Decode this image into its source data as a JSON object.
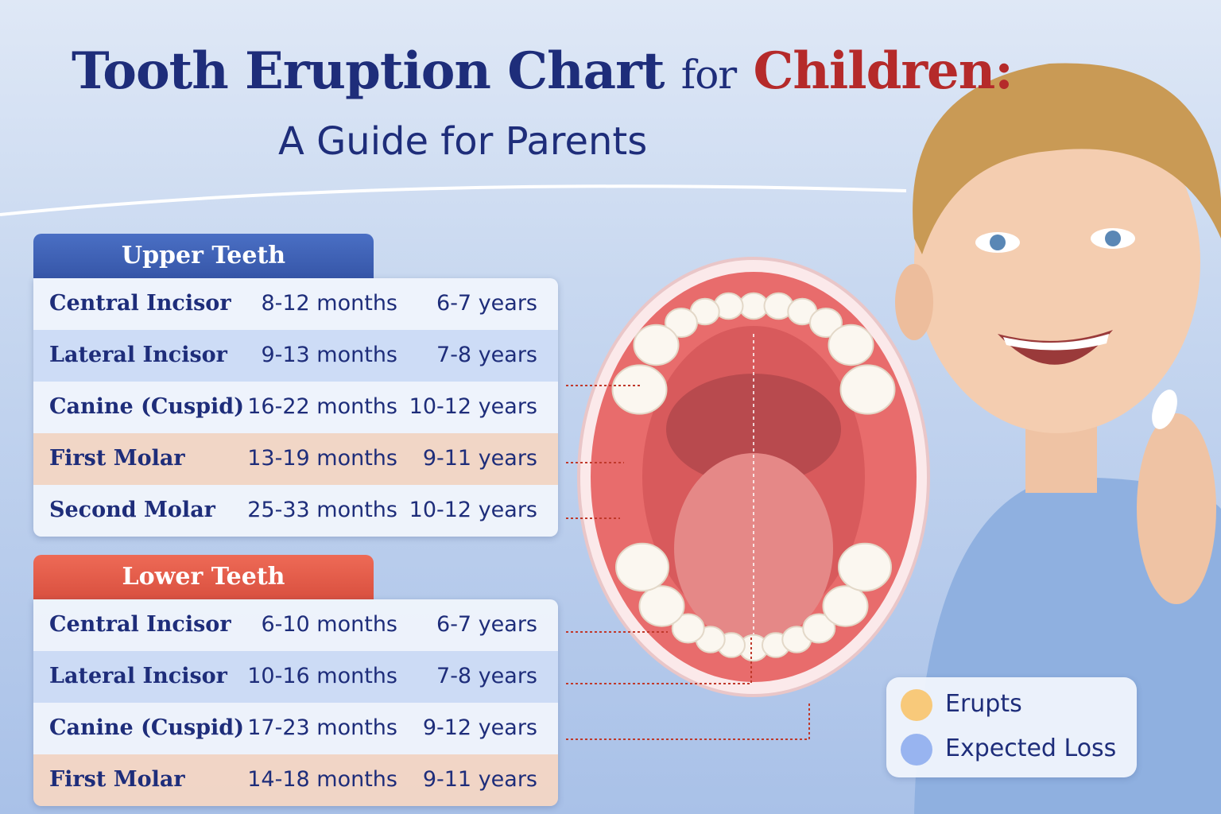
{
  "title": {
    "main": "Tooth Eruption Chart",
    "connector": "for",
    "highlight": "Children:",
    "subtitle": "A Guide for Parents"
  },
  "upper_teeth": {
    "heading": "Upper Teeth",
    "rows": [
      [
        "Central Incisor",
        "8-12 months",
        "6-7 years"
      ],
      [
        "Lateral Incisor",
        "9-13 months",
        "7-8 years"
      ],
      [
        "Canine (Cuspid)",
        "16-22 months",
        "10-12 years"
      ],
      [
        "First Molar",
        "13-19 months",
        "9-11 years"
      ],
      [
        "Second Molar",
        "25-33 months",
        "10-12 years"
      ]
    ]
  },
  "lower_teeth": {
    "heading": "Lower Teeth",
    "rows": [
      [
        "Central Incisor",
        "6-10 months",
        "6-7 years"
      ],
      [
        "Lateral Incisor",
        "10-16 months",
        "7-8 years"
      ],
      [
        "Canine (Cuspid)",
        "17-23 months",
        "9-12 years"
      ],
      [
        "First Molar",
        "14-18 months",
        "9-11 years"
      ]
    ]
  },
  "legend": [
    "Erupts",
    "Expected Loss"
  ]
}
